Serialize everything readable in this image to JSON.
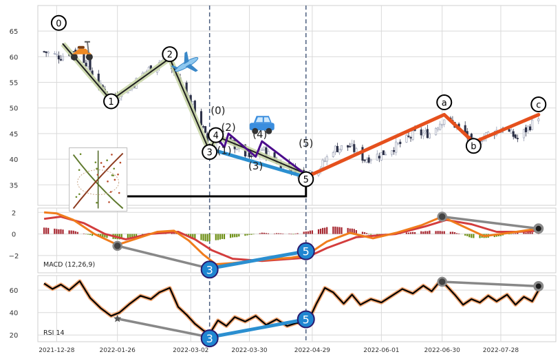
{
  "chart_data": [
    {
      "type": "candlestick",
      "panel": "price",
      "ylim": [
        31,
        70
      ],
      "yticks": [
        35,
        40,
        45,
        50,
        55,
        60,
        65
      ],
      "grid": true,
      "x_range": [
        "2021-12-20",
        "2022-08-20"
      ],
      "xticks": [
        "2021-12-28",
        "2022-01-26",
        "2022-03-02",
        "2022-03-30",
        "2022-04-29",
        "2022-06-01",
        "2022-06-30",
        "2022-07-28"
      ],
      "close_waypoints": [
        {
          "x": "2021-12-22",
          "y": 61
        },
        {
          "x": "2021-12-30",
          "y": 60
        },
        {
          "x": "2022-01-06",
          "y": 61.5
        },
        {
          "x": "2022-01-11",
          "y": 59
        },
        {
          "x": "2022-01-18",
          "y": 54
        },
        {
          "x": "2022-01-24",
          "y": 52
        },
        {
          "x": "2022-02-01",
          "y": 54
        },
        {
          "x": "2022-02-08",
          "y": 57
        },
        {
          "x": "2022-02-15",
          "y": 59
        },
        {
          "x": "2022-02-18",
          "y": 59.5
        },
        {
          "x": "2022-02-22",
          "y": 57
        },
        {
          "x": "2022-02-28",
          "y": 53
        },
        {
          "x": "2022-03-07",
          "y": 47
        },
        {
          "x": "2022-03-11",
          "y": 42
        },
        {
          "x": "2022-03-14",
          "y": 44
        },
        {
          "x": "2022-03-22",
          "y": 43
        },
        {
          "x": "2022-03-31",
          "y": 40
        },
        {
          "x": "2022-04-05",
          "y": 42
        },
        {
          "x": "2022-04-14",
          "y": 39
        },
        {
          "x": "2022-04-25",
          "y": 37.5
        },
        {
          "x": "2022-05-02",
          "y": 38
        },
        {
          "x": "2022-05-09",
          "y": 42
        },
        {
          "x": "2022-05-17",
          "y": 42.5
        },
        {
          "x": "2022-05-24",
          "y": 40
        },
        {
          "x": "2022-06-01",
          "y": 41
        },
        {
          "x": "2022-06-10",
          "y": 43
        },
        {
          "x": "2022-06-17",
          "y": 45
        },
        {
          "x": "2022-06-24",
          "y": 45
        },
        {
          "x": "2022-07-01",
          "y": 48
        },
        {
          "x": "2022-07-05",
          "y": 47
        },
        {
          "x": "2022-07-11",
          "y": 45
        },
        {
          "x": "2022-07-14",
          "y": 43
        },
        {
          "x": "2022-07-22",
          "y": 45
        },
        {
          "x": "2022-07-29",
          "y": 46
        },
        {
          "x": "2022-08-05",
          "y": 44
        },
        {
          "x": "2022-08-12",
          "y": 47
        },
        {
          "x": "2022-08-15",
          "y": 48.5
        }
      ],
      "vertical_markers": [
        "2022-03-11",
        "2022-04-26"
      ],
      "wave_paths": [
        {
          "color": "#1f1f1f",
          "glow": "#c9d6a8",
          "width": 2,
          "points": [
            {
              "x": "2021-12-31",
              "y": 62.5
            },
            {
              "x": "2022-01-23",
              "y": 51.5
            },
            {
              "x": "2022-02-20",
              "y": 59.7
            },
            {
              "x": "2022-03-11",
              "y": 41.5
            }
          ]
        },
        {
          "color": "#1f1f1f",
          "glow": "#c9d6a8",
          "width": 2,
          "points": [
            {
              "x": "2022-03-11",
              "y": 41.5
            },
            {
              "x": "2022-03-14",
              "y": 44.5
            },
            {
              "x": "2022-03-29",
              "y": 42
            },
            {
              "x": "2022-04-24",
              "y": 37.5
            }
          ]
        },
        {
          "color": "#2b8fd0",
          "width": 5,
          "points": [
            {
              "x": "2022-03-11",
              "y": 42
            },
            {
              "x": "2022-04-26",
              "y": 36.5
            }
          ]
        },
        {
          "color": "#4b0b8c",
          "width": 3,
          "points": [
            {
              "x": "2022-03-14",
              "y": 44.5
            },
            {
              "x": "2022-03-18",
              "y": 42.3
            },
            {
              "x": "2022-03-20",
              "y": 45
            },
            {
              "x": "2022-04-02",
              "y": 40.5
            },
            {
              "x": "2022-04-05",
              "y": 43.5
            },
            {
              "x": "2022-04-26",
              "y": 37
            }
          ]
        },
        {
          "color": "#e5501d",
          "width": 5,
          "points": [
            {
              "x": "2022-04-26",
              "y": 36.5
            },
            {
              "x": "2022-07-01",
              "y": 48.7
            },
            {
              "x": "2022-07-15",
              "y": 43.3
            },
            {
              "x": "2022-08-15",
              "y": 48.7
            }
          ]
        }
      ],
      "circle_labels": [
        {
          "text": "0",
          "x": "2021-12-29",
          "y": 66.6
        },
        {
          "text": "1",
          "x": "2022-01-23",
          "y": 51.3
        },
        {
          "text": "2",
          "x": "2022-02-20",
          "y": 60.5
        },
        {
          "text": "3",
          "x": "2022-03-11",
          "y": 41.4
        },
        {
          "text": "4",
          "x": "2022-03-14",
          "y": 44.7
        },
        {
          "text": "5",
          "x": "2022-04-26",
          "y": 36.1
        },
        {
          "text": "a",
          "x": "2022-07-01",
          "y": 51.1
        },
        {
          "text": "b",
          "x": "2022-07-15",
          "y": 42.6
        },
        {
          "text": "c",
          "x": "2022-08-15",
          "y": 50.7
        }
      ],
      "plain_labels": [
        {
          "text": "(0)",
          "x": "2022-03-15",
          "y": 48.8
        },
        {
          "text": "(2)",
          "x": "2022-03-20",
          "y": 45.5
        },
        {
          "text": "(1)",
          "x": "2022-03-18",
          "y": 41
        },
        {
          "text": "(4)",
          "x": "2022-04-04",
          "y": 44.2
        },
        {
          "text": "(3)",
          "x": "2022-04-02",
          "y": 38
        },
        {
          "text": "(5)",
          "x": "2022-04-26",
          "y": 42.4
        }
      ],
      "icons": [
        {
          "name": "scooter-icon",
          "glyph": "🛵",
          "x": "2022-01-09",
          "y": 61.3
        },
        {
          "name": "airplane-icon",
          "glyph": "✈",
          "x": "2022-02-28",
          "y": 58.5
        },
        {
          "name": "car-icon",
          "glyph": "🚙",
          "x": "2022-04-05",
          "y": 46.7
        }
      ],
      "thumbnail": {
        "x": "2022-01-03",
        "y": 32,
        "connector_end": {
          "x": "2022-04-26",
          "y": 35.8
        }
      }
    },
    {
      "type": "macd",
      "panel": "macd",
      "legend": "MACD (12,26,9)",
      "ylim": [
        -3.6,
        2.4
      ],
      "yticks": [
        -2,
        0,
        2
      ],
      "macd_line_color": "#f07c1c",
      "signal_line_color": "#d33d3d",
      "histogram_pos_color": "#a6262f",
      "histogram_neg_color": "#6d8f14",
      "macd_line": [
        {
          "x": "2021-12-22",
          "y": 2
        },
        {
          "x": "2021-12-28",
          "y": 1.9
        },
        {
          "x": "2022-01-05",
          "y": 1.3
        },
        {
          "x": "2022-01-15",
          "y": 0
        },
        {
          "x": "2022-01-26",
          "y": -1
        },
        {
          "x": "2022-02-03",
          "y": -0.5
        },
        {
          "x": "2022-02-14",
          "y": 0.2
        },
        {
          "x": "2022-02-22",
          "y": 0.3
        },
        {
          "x": "2022-03-01",
          "y": -0.6
        },
        {
          "x": "2022-03-08",
          "y": -1.9
        },
        {
          "x": "2022-03-14",
          "y": -2.8
        },
        {
          "x": "2022-03-22",
          "y": -2.7
        },
        {
          "x": "2022-04-05",
          "y": -2.4
        },
        {
          "x": "2022-04-19",
          "y": -2.2
        },
        {
          "x": "2022-04-26",
          "y": -2
        },
        {
          "x": "2022-05-06",
          "y": -0.7
        },
        {
          "x": "2022-05-17",
          "y": 0.1
        },
        {
          "x": "2022-05-28",
          "y": -0.4
        },
        {
          "x": "2022-06-08",
          "y": 0.1
        },
        {
          "x": "2022-06-20",
          "y": 0.8
        },
        {
          "x": "2022-06-30",
          "y": 1.6
        },
        {
          "x": "2022-07-10",
          "y": 0.7
        },
        {
          "x": "2022-07-20",
          "y": -0.2
        },
        {
          "x": "2022-08-01",
          "y": 0.1
        },
        {
          "x": "2022-08-15",
          "y": 0.5
        }
      ],
      "signal_line": [
        {
          "x": "2021-12-22",
          "y": 1.4
        },
        {
          "x": "2021-12-30",
          "y": 1.6
        },
        {
          "x": "2022-01-10",
          "y": 1.0
        },
        {
          "x": "2022-01-20",
          "y": 0
        },
        {
          "x": "2022-01-30",
          "y": -0.5
        },
        {
          "x": "2022-02-10",
          "y": 0
        },
        {
          "x": "2022-02-24",
          "y": 0.2
        },
        {
          "x": "2022-03-04",
          "y": -0.5
        },
        {
          "x": "2022-03-12",
          "y": -1.5
        },
        {
          "x": "2022-03-22",
          "y": -2.3
        },
        {
          "x": "2022-04-05",
          "y": -2.5
        },
        {
          "x": "2022-04-26",
          "y": -2.2
        },
        {
          "x": "2022-05-06",
          "y": -1.3
        },
        {
          "x": "2022-05-20",
          "y": -0.3
        },
        {
          "x": "2022-06-08",
          "y": 0
        },
        {
          "x": "2022-06-22",
          "y": 0.7
        },
        {
          "x": "2022-07-02",
          "y": 1.3
        },
        {
          "x": "2022-07-14",
          "y": 0.9
        },
        {
          "x": "2022-07-26",
          "y": 0.2
        },
        {
          "x": "2022-08-05",
          "y": 0.2
        },
        {
          "x": "2022-08-15",
          "y": 0.3
        }
      ],
      "histogram_waypoints": [
        {
          "x": "2021-12-22",
          "y": 0.6
        },
        {
          "x": "2022-01-05",
          "y": 0.3
        },
        {
          "x": "2022-01-15",
          "y": -0.2
        },
        {
          "x": "2022-01-26",
          "y": -0.5
        },
        {
          "x": "2022-02-05",
          "y": -0.4
        },
        {
          "x": "2022-02-15",
          "y": 0.2
        },
        {
          "x": "2022-02-22",
          "y": 0.3
        },
        {
          "x": "2022-03-01",
          "y": -0.3
        },
        {
          "x": "2022-03-10",
          "y": -0.7
        },
        {
          "x": "2022-03-20",
          "y": -0.4
        },
        {
          "x": "2022-04-05",
          "y": 0.1
        },
        {
          "x": "2022-04-20",
          "y": 0
        },
        {
          "x": "2022-04-28",
          "y": 0.3
        },
        {
          "x": "2022-05-08",
          "y": 0.7
        },
        {
          "x": "2022-05-18",
          "y": 0.5
        },
        {
          "x": "2022-05-28",
          "y": -0.1
        },
        {
          "x": "2022-06-10",
          "y": 0.1
        },
        {
          "x": "2022-06-25",
          "y": 0.3
        },
        {
          "x": "2022-07-05",
          "y": 0.2
        },
        {
          "x": "2022-07-15",
          "y": -0.4
        },
        {
          "x": "2022-07-25",
          "y": -0.3
        },
        {
          "x": "2022-08-05",
          "y": 0.1
        },
        {
          "x": "2022-08-15",
          "y": 0.2
        }
      ],
      "divergence_lines": [
        {
          "color": "#888888",
          "from": {
            "x": "2022-01-26",
            "y": -1.1
          },
          "to": {
            "x": "2022-03-11",
            "y": -3.2
          }
        },
        {
          "color": "#2b8fd0",
          "from": {
            "x": "2022-03-11",
            "y": -3.2
          },
          "to": {
            "x": "2022-04-26",
            "y": -1.6
          }
        },
        {
          "color": "#888888",
          "from": {
            "x": "2022-06-30",
            "y": 1.6
          },
          "to": {
            "x": "2022-08-15",
            "y": 0.5
          }
        }
      ],
      "badges": [
        {
          "text": "3",
          "x": "2022-03-11",
          "y": -3.3
        },
        {
          "text": "5",
          "x": "2022-04-26",
          "y": -1.6
        }
      ],
      "dots": [
        {
          "x": "2022-01-26",
          "y": -1.1,
          "big": false
        },
        {
          "x": "2022-06-30",
          "y": 1.6,
          "big": false
        },
        {
          "x": "2022-08-15",
          "y": 0.5,
          "big": true
        }
      ]
    },
    {
      "type": "rsi",
      "panel": "rsi",
      "legend": "RSI 14",
      "ylim": [
        14,
        73
      ],
      "yticks": [
        20,
        40,
        60
      ],
      "line_color": "#000000",
      "line_glow": "#f3a874",
      "series": [
        {
          "x": "2021-12-22",
          "y": 66
        },
        {
          "x": "2021-12-26",
          "y": 61
        },
        {
          "x": "2021-12-30",
          "y": 65
        },
        {
          "x": "2022-01-03",
          "y": 60
        },
        {
          "x": "2022-01-08",
          "y": 68
        },
        {
          "x": "2022-01-13",
          "y": 53
        },
        {
          "x": "2022-01-18",
          "y": 44
        },
        {
          "x": "2022-01-23",
          "y": 37
        },
        {
          "x": "2022-01-27",
          "y": 40
        },
        {
          "x": "2022-02-01",
          "y": 48
        },
        {
          "x": "2022-02-06",
          "y": 55
        },
        {
          "x": "2022-02-11",
          "y": 52
        },
        {
          "x": "2022-02-15",
          "y": 58
        },
        {
          "x": "2022-02-20",
          "y": 62
        },
        {
          "x": "2022-02-24",
          "y": 45
        },
        {
          "x": "2022-02-28",
          "y": 38
        },
        {
          "x": "2022-03-04",
          "y": 30
        },
        {
          "x": "2022-03-08",
          "y": 24
        },
        {
          "x": "2022-03-11",
          "y": 21
        },
        {
          "x": "2022-03-15",
          "y": 33
        },
        {
          "x": "2022-03-19",
          "y": 28
        },
        {
          "x": "2022-03-23",
          "y": 36
        },
        {
          "x": "2022-03-28",
          "y": 32
        },
        {
          "x": "2022-04-02",
          "y": 37
        },
        {
          "x": "2022-04-07",
          "y": 29
        },
        {
          "x": "2022-04-12",
          "y": 34
        },
        {
          "x": "2022-04-17",
          "y": 28
        },
        {
          "x": "2022-04-22",
          "y": 31
        },
        {
          "x": "2022-04-26",
          "y": 28
        },
        {
          "x": "2022-05-01",
          "y": 48
        },
        {
          "x": "2022-05-05",
          "y": 62
        },
        {
          "x": "2022-05-09",
          "y": 58
        },
        {
          "x": "2022-05-14",
          "y": 48
        },
        {
          "x": "2022-05-18",
          "y": 56
        },
        {
          "x": "2022-05-22",
          "y": 47
        },
        {
          "x": "2022-05-27",
          "y": 52
        },
        {
          "x": "2022-06-01",
          "y": 49
        },
        {
          "x": "2022-06-06",
          "y": 55
        },
        {
          "x": "2022-06-11",
          "y": 61
        },
        {
          "x": "2022-06-16",
          "y": 57
        },
        {
          "x": "2022-06-21",
          "y": 64
        },
        {
          "x": "2022-06-25",
          "y": 59
        },
        {
          "x": "2022-06-29",
          "y": 68
        },
        {
          "x": "2022-07-02",
          "y": 64
        },
        {
          "x": "2022-07-06",
          "y": 56
        },
        {
          "x": "2022-07-10",
          "y": 47
        },
        {
          "x": "2022-07-14",
          "y": 52
        },
        {
          "x": "2022-07-18",
          "y": 49
        },
        {
          "x": "2022-07-22",
          "y": 55
        },
        {
          "x": "2022-07-26",
          "y": 50
        },
        {
          "x": "2022-07-31",
          "y": 56
        },
        {
          "x": "2022-08-04",
          "y": 47
        },
        {
          "x": "2022-08-08",
          "y": 54
        },
        {
          "x": "2022-08-12",
          "y": 50
        },
        {
          "x": "2022-08-15",
          "y": 60
        }
      ],
      "divergence_lines": [
        {
          "color": "#888888",
          "from": {
            "x": "2022-01-26",
            "y": 34.5
          },
          "to": {
            "x": "2022-03-11",
            "y": 18
          }
        },
        {
          "color": "#2b8fd0",
          "from": {
            "x": "2022-03-11",
            "y": 18
          },
          "to": {
            "x": "2022-04-26",
            "y": 34
          }
        },
        {
          "color": "#888888",
          "from": {
            "x": "2022-06-30",
            "y": 67.5
          },
          "to": {
            "x": "2022-08-15",
            "y": 63.5
          }
        }
      ],
      "badges": [
        {
          "text": "3",
          "x": "2022-03-11",
          "y": 17
        },
        {
          "text": "5",
          "x": "2022-04-26",
          "y": 34
        }
      ],
      "star": {
        "x": "2022-01-26",
        "y": 34.5
      },
      "dots": [
        {
          "x": "2022-06-30",
          "y": 67.5,
          "big": false
        },
        {
          "x": "2022-08-15",
          "y": 63.5,
          "big": true
        }
      ]
    }
  ]
}
